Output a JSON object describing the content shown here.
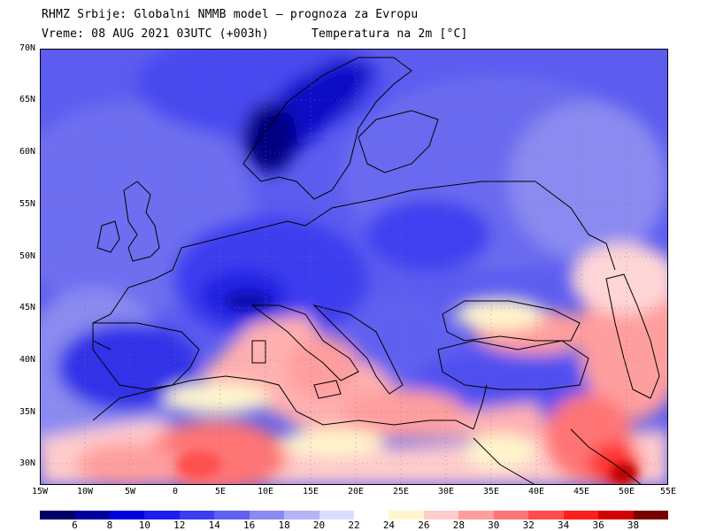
{
  "header": {
    "title": "RHMZ Srbije: Globalni NMMB model — prognoza za Evropu",
    "time": "Vreme: 08 AUG 2021 03UTC (+003h)",
    "field": "Temperatura na 2m [°C]"
  },
  "latitude_labels": [
    "70N",
    "65N",
    "60N",
    "55N",
    "50N",
    "45N",
    "40N",
    "35N",
    "30N"
  ],
  "longitude_labels": [
    "15W",
    "10W",
    "5W",
    "0",
    "5E",
    "10E",
    "15E",
    "20E",
    "25E",
    "30E",
    "35E",
    "40E",
    "45E",
    "50E",
    "55E"
  ],
  "colorbar": {
    "labels": [
      "6",
      "8",
      "10",
      "12",
      "14",
      "16",
      "18",
      "20",
      "22",
      "24",
      "26",
      "28",
      "30",
      "32",
      "34",
      "36",
      "38"
    ],
    "colors": [
      "#000066",
      "#00009e",
      "#0000e0",
      "#1e1ef0",
      "#3c3cf0",
      "#6060f0",
      "#8a8af0",
      "#b4b4f4",
      "#dcdcff",
      "#ffffff",
      "#fff6cc",
      "#ffcccc",
      "#ff9e9e",
      "#ff7474",
      "#ff4c4c",
      "#ff1e1e",
      "#d20000",
      "#780000"
    ]
  },
  "map": {
    "extent": {
      "lon": [
        -15,
        55
      ],
      "lat": [
        28,
        70
      ]
    },
    "features": [
      "Scandinavia",
      "British Isles",
      "Iberia",
      "Mediterranean Sea",
      "Black Sea",
      "Caspian Sea",
      "North Africa",
      "Arabian Peninsula"
    ]
  }
}
